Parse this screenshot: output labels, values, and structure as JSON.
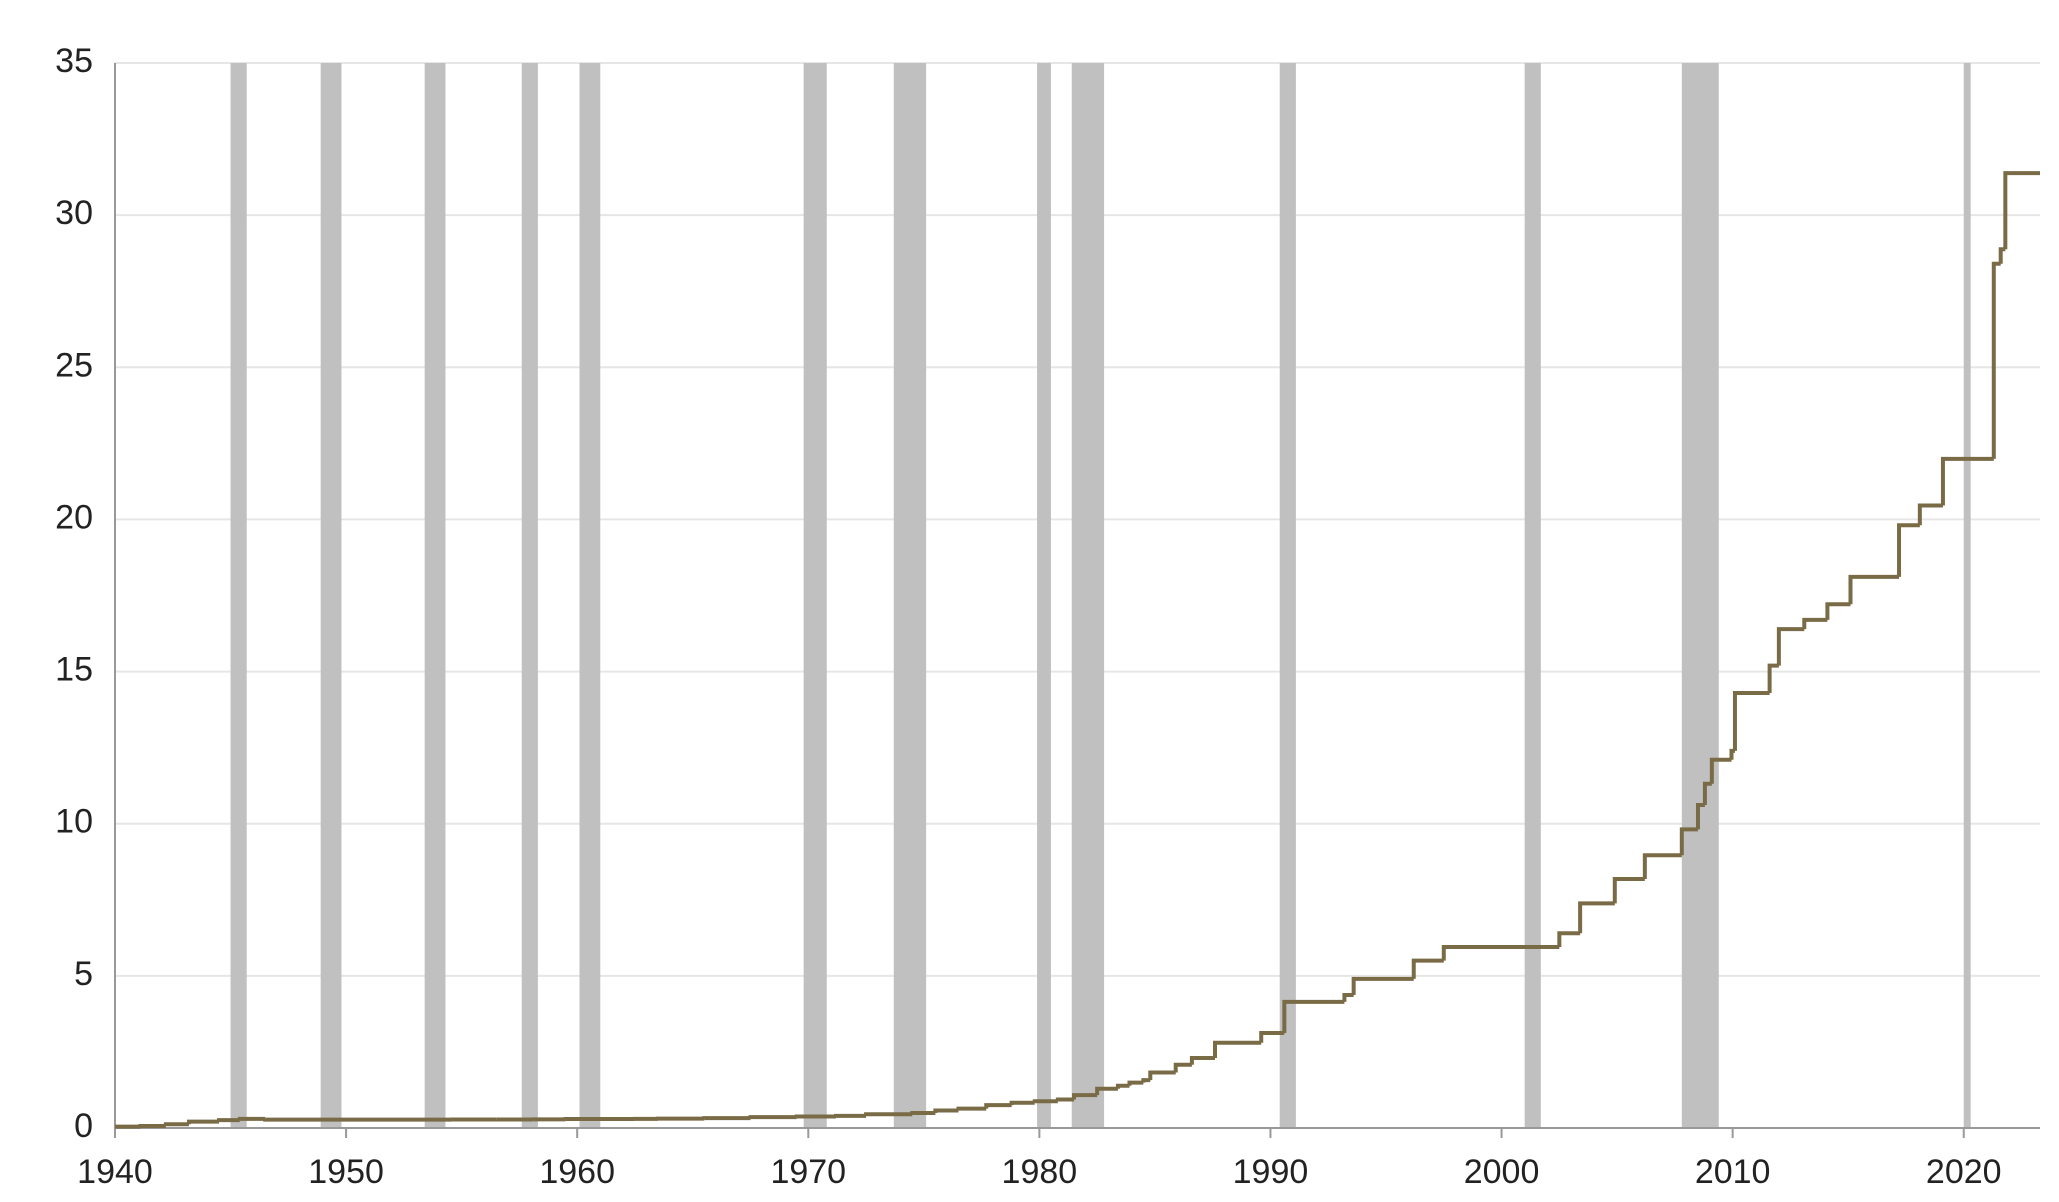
{
  "chart_data": {
    "type": "line",
    "step": "post",
    "color": "#7a6b47",
    "recession_color": "#c0c0c0",
    "grid": true,
    "xlim": [
      1940,
      2023.3
    ],
    "xticks": [
      1940,
      1950,
      1960,
      1970,
      1980,
      1990,
      2000,
      2010,
      2020
    ],
    "ylim": [
      0,
      35
    ],
    "yticks": [
      0,
      5,
      10,
      15,
      20,
      25,
      30,
      35
    ],
    "recessions": [
      [
        1945.0,
        1945.7
      ],
      [
        1948.9,
        1949.8
      ],
      [
        1953.4,
        1954.3
      ],
      [
        1957.6,
        1958.3
      ],
      [
        1960.1,
        1961.0
      ],
      [
        1969.8,
        1970.8
      ],
      [
        1973.7,
        1975.1
      ],
      [
        1979.9,
        1980.5
      ],
      [
        1981.4,
        1982.8
      ],
      [
        1990.4,
        1991.1
      ],
      [
        2001.0,
        2001.7
      ],
      [
        2007.8,
        2009.4
      ],
      [
        2020.0,
        2020.3
      ]
    ],
    "x": [
      1940.0,
      1941.1,
      1942.2,
      1943.2,
      1944.5,
      1945.4,
      1946.5,
      1954.6,
      1956.5,
      1958.1,
      1959.5,
      1962.5,
      1963.5,
      1965.5,
      1967.5,
      1969.5,
      1971.2,
      1972.5,
      1974.5,
      1975.5,
      1976.5,
      1977.7,
      1978.8,
      1979.8,
      1980.8,
      1981.5,
      1982.5,
      1983.4,
      1983.9,
      1984.5,
      1984.8,
      1985.9,
      1986.6,
      1987.6,
      1989.6,
      1990.6,
      1993.2,
      1993.6,
      1996.2,
      1997.5,
      2002.5,
      2003.4,
      2004.9,
      2006.2,
      2007.8,
      2008.5,
      2008.8,
      2009.1,
      2009.95,
      2010.1,
      2011.6,
      2012.0,
      2013.1,
      2014.1,
      2015.1,
      2017.2,
      2018.1,
      2019.1,
      2021.3,
      2021.6,
      2021.8,
      2023.3
    ],
    "values": [
      0.045,
      0.065,
      0.125,
      0.21,
      0.26,
      0.3,
      0.275,
      0.281,
      0.278,
      0.283,
      0.295,
      0.3,
      0.307,
      0.324,
      0.358,
      0.377,
      0.4,
      0.45,
      0.495,
      0.577,
      0.636,
      0.752,
      0.83,
      0.879,
      0.935,
      1.079,
      1.29,
      1.389,
      1.49,
      1.573,
      1.824,
      2.079,
      2.3,
      2.8,
      3.123,
      4.145,
      4.37,
      4.9,
      5.5,
      5.95,
      6.4,
      7.384,
      8.184,
      8.965,
      9.815,
      10.615,
      11.315,
      12.104,
      12.394,
      14.294,
      15.194,
      16.394,
      16.699,
      17.212,
      18.113,
      19.809,
      20.456,
      21.988,
      28.401,
      28.881,
      31.381,
      31.381
    ]
  }
}
